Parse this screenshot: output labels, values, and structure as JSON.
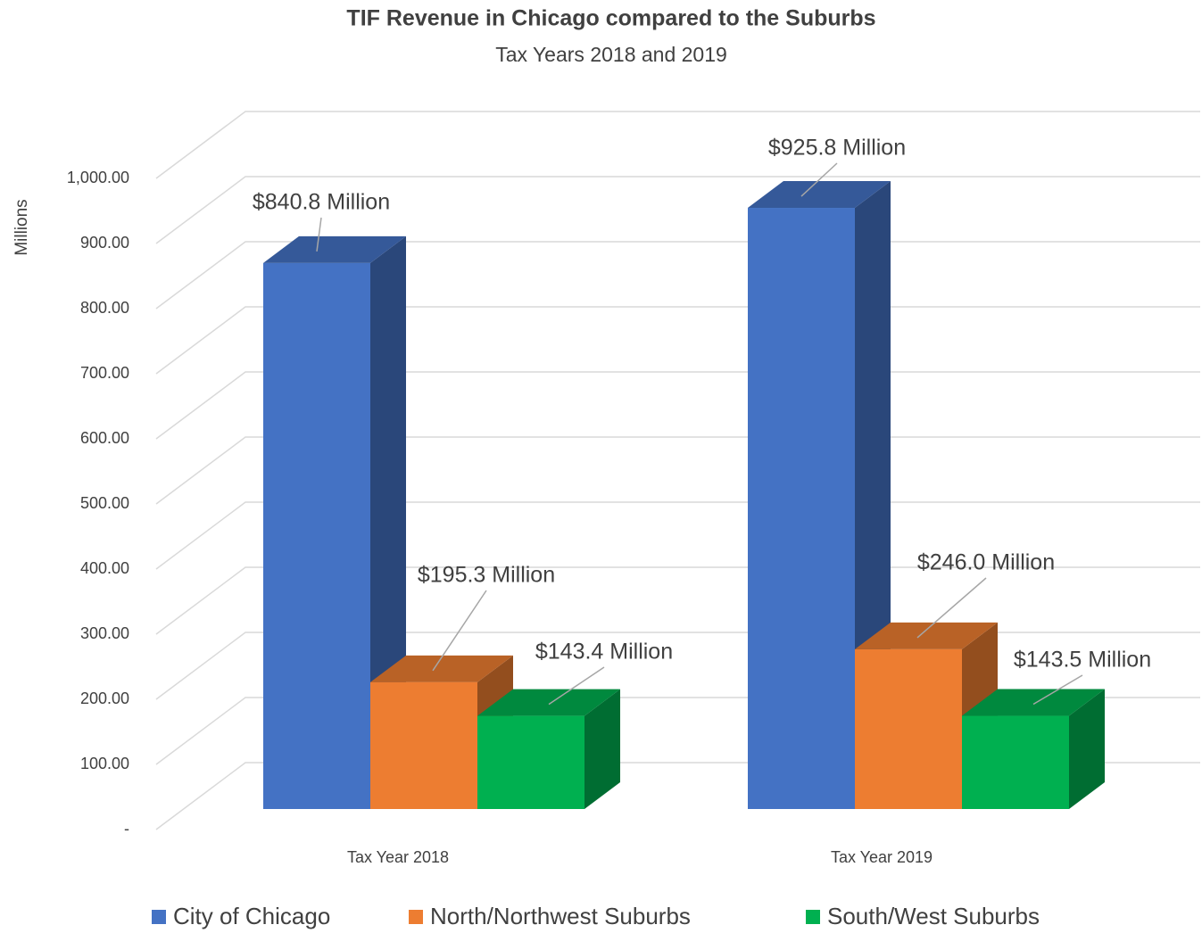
{
  "chart_data": {
    "type": "bar3d",
    "title": "TIF Revenue in Chicago compared to the Suburbs",
    "subtitle": "Tax Years 2018 and 2019",
    "y_label": "Millions",
    "categories": [
      "Tax Year 2018",
      "Tax Year 2019"
    ],
    "series": [
      {
        "name": "City of Chicago",
        "color": "#4472c4",
        "values": [
          840.8,
          925.8
        ],
        "value_labels": [
          "$840.8 Million",
          "$925.8 Million"
        ]
      },
      {
        "name": "North/Northwest Suburbs",
        "color": "#ed7d31",
        "values": [
          195.3,
          246.0
        ],
        "value_labels": [
          "$195.3 Million",
          "$246.0 Million"
        ]
      },
      {
        "name": "South/West Suburbs",
        "color": "#00b050",
        "values": [
          143.4,
          143.5
        ],
        "value_labels": [
          "$143.4 Million",
          "$143.5 Million"
        ]
      }
    ],
    "ylim": [
      0,
      1000
    ],
    "yticks": [
      {
        "value": 0,
        "label": "-"
      },
      {
        "value": 100,
        "label": "100.00"
      },
      {
        "value": 200,
        "label": "200.00"
      },
      {
        "value": 300,
        "label": "300.00"
      },
      {
        "value": 400,
        "label": "400.00"
      },
      {
        "value": 500,
        "label": "500.00"
      },
      {
        "value": 600,
        "label": "600.00"
      },
      {
        "value": 700,
        "label": "700.00"
      },
      {
        "value": 800,
        "label": "800.00"
      },
      {
        "value": 900,
        "label": "900.00"
      },
      {
        "value": 1000,
        "label": "1,000.00"
      }
    ],
    "grid": true,
    "legend": "bottom"
  }
}
